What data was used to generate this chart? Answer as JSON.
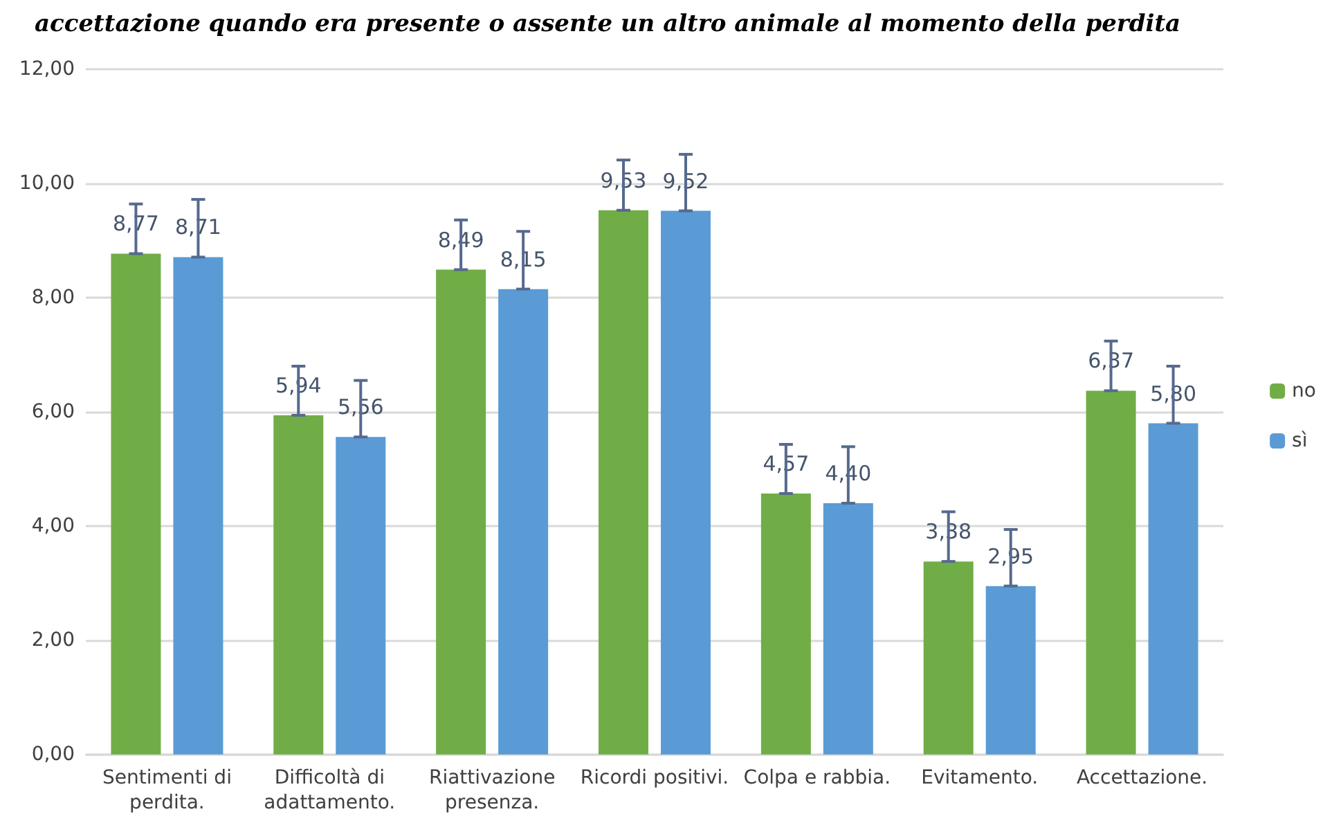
{
  "chart_data": {
    "type": "bar",
    "title": "accettazione quando era presente o assente un altro animale al momento della perdita",
    "categories": [
      "Sentimenti di\nperdita.",
      "Difficoltà di\nadattamento.",
      "Riattivazione\npresenza.",
      "Ricordi positivi.",
      "Colpa e rabbia.",
      "Evitamento.",
      "Accettazione."
    ],
    "series": [
      {
        "name": "no",
        "color": "#70ad47",
        "values": [
          8.77,
          5.94,
          8.49,
          9.53,
          4.57,
          3.38,
          6.37
        ],
        "value_labels": [
          "8,77",
          "5,94",
          "8,49",
          "9,53",
          "4,57",
          "3,38",
          "6,37"
        ],
        "errors": [
          [
            8.77,
            9.64
          ],
          [
            5.94,
            6.8
          ],
          [
            8.49,
            9.36
          ],
          [
            9.53,
            10.41
          ],
          [
            4.57,
            5.43
          ],
          [
            3.38,
            4.25
          ],
          [
            6.37,
            7.24
          ]
        ]
      },
      {
        "name": "sì",
        "color": "#5b9bd5",
        "values": [
          8.71,
          5.56,
          8.15,
          9.52,
          4.4,
          2.95,
          5.8
        ],
        "value_labels": [
          "8,71",
          "5,56",
          "8,15",
          "9,52",
          "4,40",
          "2,95",
          "5,80"
        ],
        "errors": [
          [
            8.71,
            9.72
          ],
          [
            5.56,
            6.55
          ],
          [
            8.15,
            9.16
          ],
          [
            9.52,
            10.51
          ],
          [
            4.4,
            5.39
          ],
          [
            2.95,
            3.94
          ],
          [
            5.8,
            6.8
          ]
        ]
      }
    ],
    "ylim": [
      0,
      12
    ],
    "yticks": [
      {
        "value": 0,
        "label": "0,00"
      },
      {
        "value": 2,
        "label": "2,00"
      },
      {
        "value": 4,
        "label": "4,00"
      },
      {
        "value": 6,
        "label": "6,00"
      },
      {
        "value": 8,
        "label": "8,00"
      },
      {
        "value": 10,
        "label": "10,00"
      },
      {
        "value": 12,
        "label": "12,00"
      }
    ],
    "grid": "y",
    "legend": "right"
  }
}
